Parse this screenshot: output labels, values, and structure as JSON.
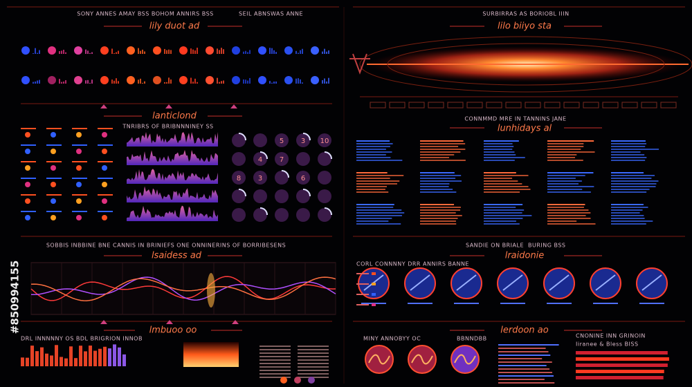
{
  "watermark": "#850994155",
  "top_left": {
    "header": "SONY ANNES AMAY  BSS  BOHOM ANNIRS BSS",
    "tag": "SEIL ABNSWAS ANNE",
    "title": "lily duot ad"
  },
  "top_right": {
    "header": "SURBIRRAS AS BORIOBL IIIN",
    "title": "lilo biiyo sta"
  },
  "mid_left": {
    "title": "lanticlond",
    "chart_header": "TNRIBRS OF BRIBNNNINEY SS",
    "dial_numbers": [
      "5",
      "3",
      "10",
      "4",
      "7",
      "8",
      "3",
      "6"
    ]
  },
  "mid_right": {
    "header": "CONNMMD MRE IN TANNINS JANE",
    "title": "lunhidays al"
  },
  "wave": {
    "header": "SOBBIS INBBINE BNE CANNIS IN BRINIEFS ONE ONNINERINS OF BORRIBESENS",
    "title": "lsaidess ad"
  },
  "gauges": {
    "header": "SANDIE ON BRIALE",
    "tag": "BURING BSS",
    "title": "lraidonie",
    "subheader": "CORL CONNNNY DRR ANNIRS BANNE"
  },
  "bottom_left": {
    "title": "lmbuoo oo",
    "header": "DRL INNNNNY OS BDL BRIGRION INNOB"
  },
  "bottom_right": {
    "title": "lerdoon ao",
    "header": "MINY ANNOBYY OC",
    "tag": "BBNNDBB",
    "side": "CNONINE INN GRINOIN",
    "side2": "Iiranee & Bless BISS"
  }
}
